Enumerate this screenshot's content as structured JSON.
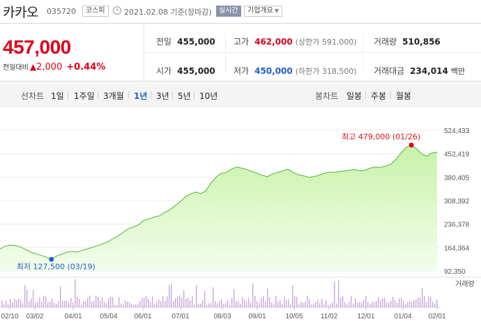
{
  "header": {
    "title": "카카오",
    "code": "035720",
    "market": "코스피",
    "date_text": "2021.02.08 기준(장마감)",
    "realtime_label": "실시간",
    "overview_label": "기업개요"
  },
  "quote": {
    "price": "457,000",
    "change_label": "전일대비",
    "change_arrow": "▲",
    "change_value": "2,000",
    "change_pct": "+0.44%",
    "prev_close_label": "전일",
    "prev_close": "455,000",
    "high_label": "고가",
    "high": "462,000",
    "upper_limit": "(상한가 591,000)",
    "volume_label": "거래량",
    "volume": "510,856",
    "open_label": "시가",
    "open": "455,000",
    "low_label": "저가",
    "low": "450,000",
    "lower_limit": "(하한가 318,500)",
    "amount_label": "거래대금",
    "amount": "234,014",
    "amount_unit": "백만"
  },
  "range_bar": {
    "line_chart_label": "선차트",
    "periods": [
      {
        "label": "1일",
        "active": false
      },
      {
        "label": "1주일",
        "active": false
      },
      {
        "label": "3개월",
        "active": false
      },
      {
        "label": "1년",
        "active": true
      },
      {
        "label": "3년",
        "active": false
      },
      {
        "label": "5년",
        "active": false
      },
      {
        "label": "10년",
        "active": false
      }
    ],
    "candle_label": "봉차트",
    "candles": [
      "일봉",
      "주봉",
      "월봉"
    ]
  },
  "colors": {
    "accent_red": "#e0001c",
    "accent_blue": "#1f5fcc",
    "area_fill_top": "#c8f2a8",
    "area_fill_bottom": "#f3fdec",
    "line": "#4fb336",
    "volume_bar": "#c8a8d8"
  },
  "icons": {
    "clock": "clock-icon",
    "caret": "caret-down-icon"
  },
  "chart_data": {
    "type": "area",
    "ylim": [
      92350,
      524433
    ],
    "yticks": [
      "524,433",
      "452,419",
      "380,405",
      "308,392",
      "236,378",
      "164,364",
      "92,350"
    ],
    "xticks": [
      "02/10",
      "03/02",
      "04/01",
      "05/04",
      "06/01",
      "07/01",
      "08/03",
      "09/01",
      "10/05",
      "11/02",
      "12/01",
      "01/04",
      "02/01"
    ],
    "series": [
      {
        "values": [
          160000,
          168000,
          172000,
          170000,
          166000,
          158000,
          150000,
          145000,
          140000,
          135000,
          128000,
          138000,
          144000,
          150000,
          152000,
          150000,
          156000,
          160000,
          165000,
          170000,
          176000,
          182000,
          192000,
          200000,
          212000,
          222000,
          228000,
          235000,
          248000,
          252000,
          258000,
          262000,
          272000,
          280000,
          292000,
          305000,
          320000,
          328000,
          335000,
          330000,
          338000,
          362000,
          380000,
          392000,
          395000,
          405000,
          412000,
          408000,
          404000,
          398000,
          392000,
          386000,
          382000,
          390000,
          395000,
          400000,
          405000,
          395000,
          388000,
          385000,
          380000,
          382000,
          386000,
          392000,
          396000,
          395000,
          398000,
          400000,
          402000,
          404000,
          400000,
          402000,
          408000,
          412000,
          410000,
          415000,
          420000,
          435000,
          455000,
          472000,
          479000,
          468000,
          452000,
          445000,
          455000,
          457000
        ]
      }
    ],
    "annotations": {
      "high": "최고 479,000 (01/26)",
      "low": "최저 127,500 (03/19)"
    },
    "volume_label": "거래량"
  }
}
